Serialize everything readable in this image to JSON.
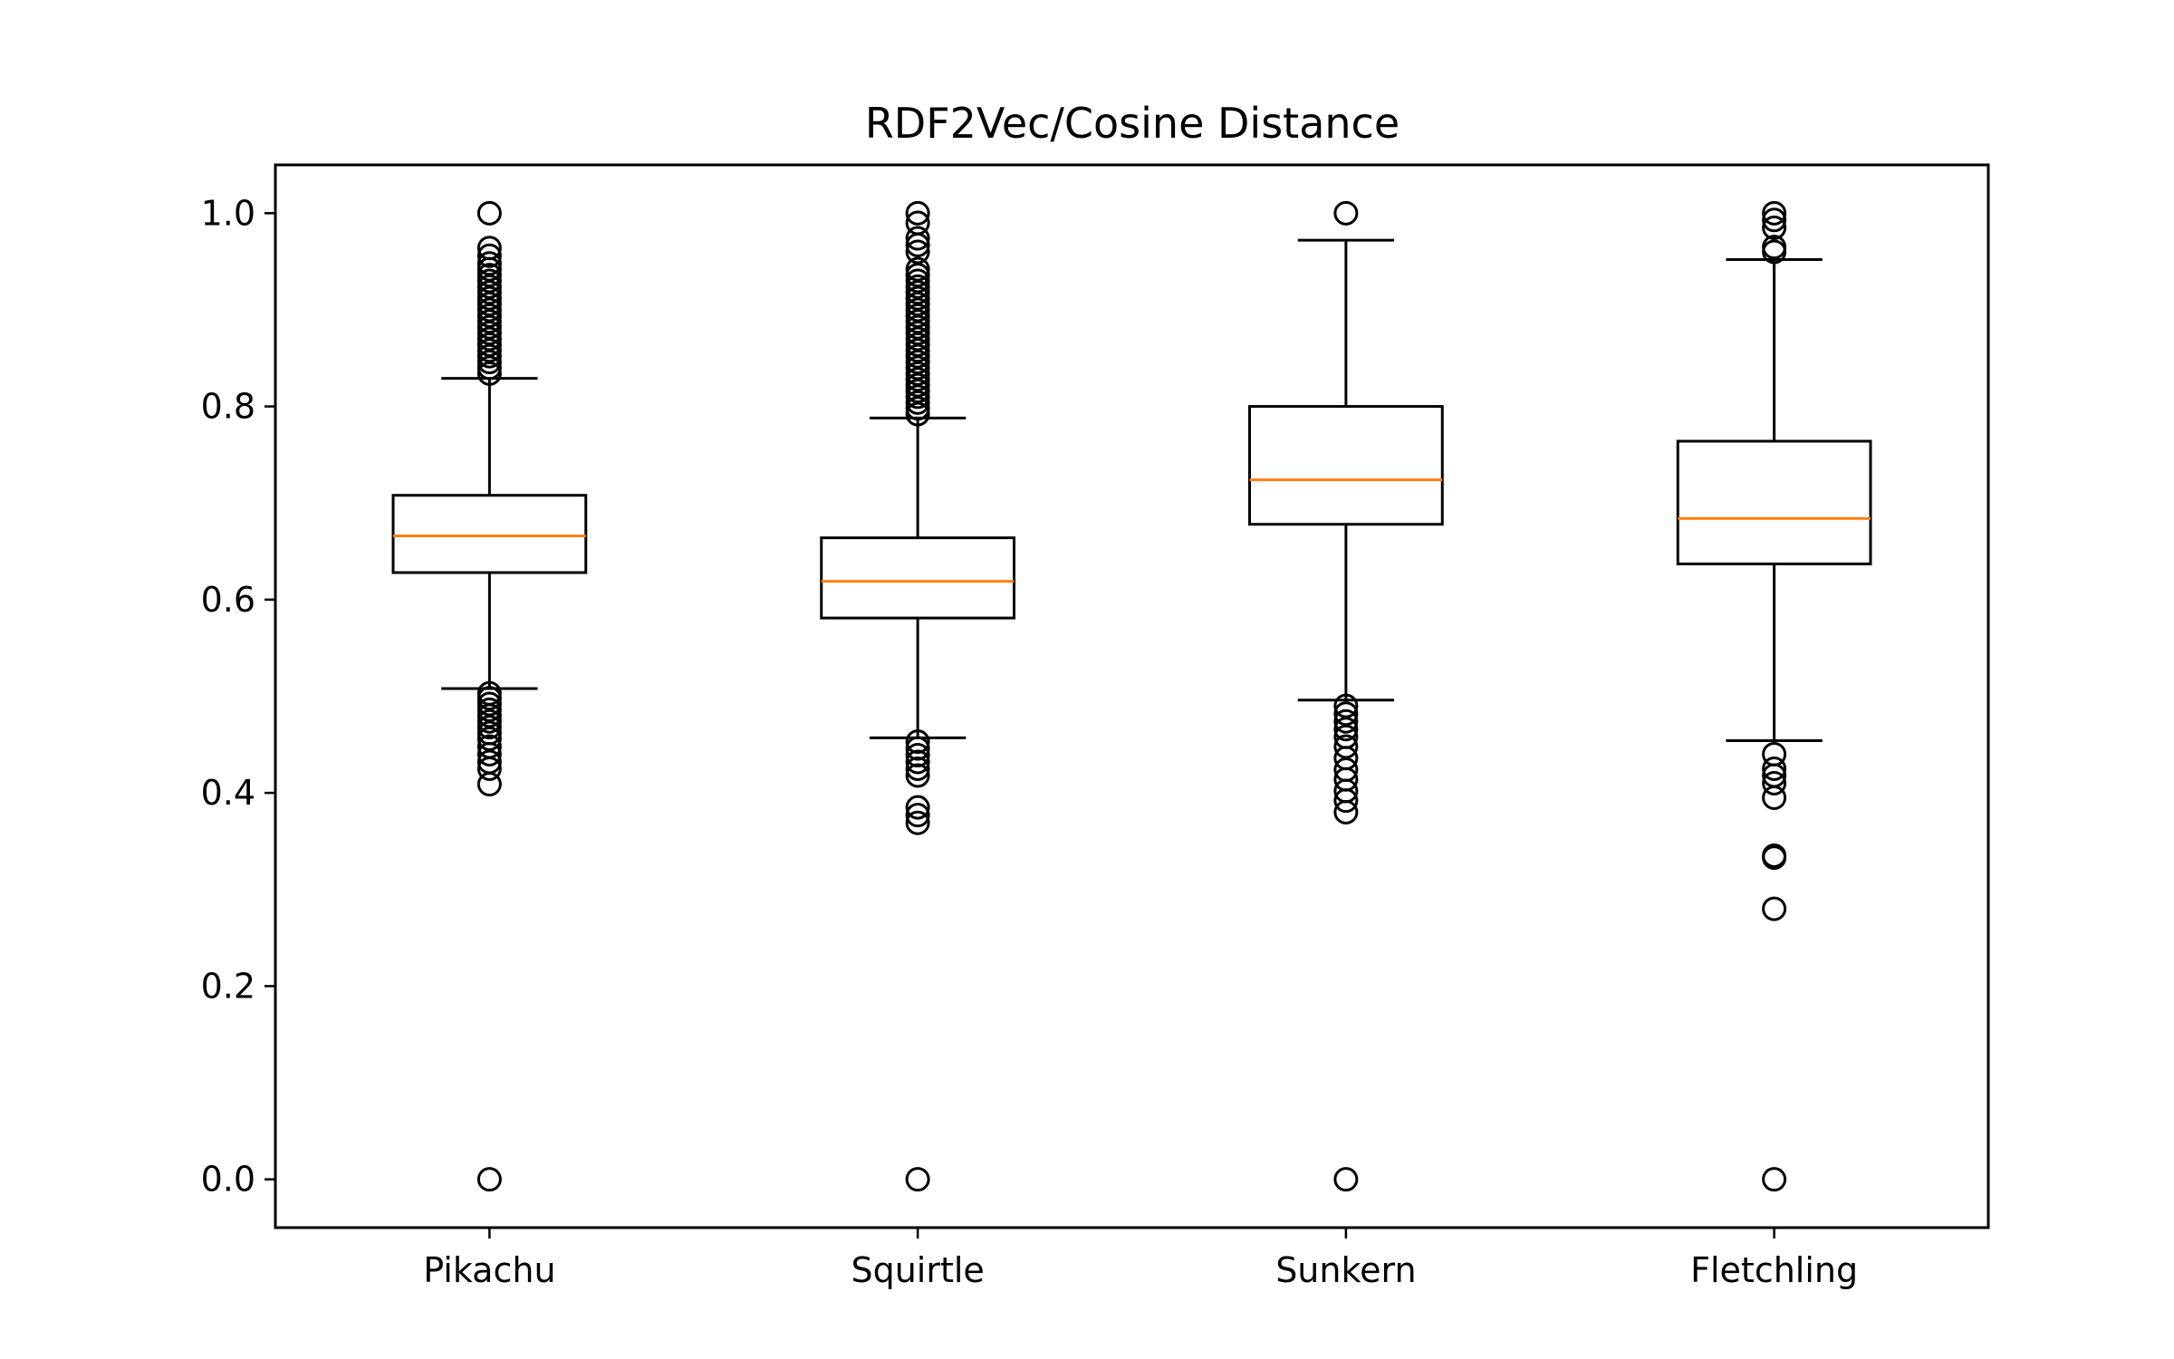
{
  "chart_data": {
    "type": "boxplot",
    "title": "RDF2Vec/Cosine Distance",
    "xlabel": "",
    "ylabel": "",
    "ylim": [
      -0.05,
      1.05
    ],
    "yticks": [
      "0.0",
      "0.2",
      "0.4",
      "0.6",
      "0.8",
      "1.0"
    ],
    "categories": [
      "Pikachu",
      "Squirtle",
      "Sunkern",
      "Fletchling"
    ],
    "series": [
      {
        "category": "Pikachu",
        "whisker_low": 0.508,
        "q1": 0.628,
        "median": 0.666,
        "q3": 0.708,
        "whisker_high": 0.829,
        "outliers": [
          0.0,
          0.409,
          0.425,
          0.432,
          0.44,
          0.448,
          0.456,
          0.462,
          0.468,
          0.474,
          0.48,
          0.486,
          0.492,
          0.498,
          0.503,
          0.834,
          0.84,
          0.846,
          0.852,
          0.858,
          0.864,
          0.87,
          0.876,
          0.882,
          0.888,
          0.894,
          0.9,
          0.906,
          0.912,
          0.918,
          0.924,
          0.93,
          0.936,
          0.942,
          0.948,
          0.956,
          0.964,
          1.0
        ]
      },
      {
        "category": "Squirtle",
        "whisker_low": 0.457,
        "q1": 0.581,
        "median": 0.619,
        "q3": 0.664,
        "whisker_high": 0.788,
        "outliers": [
          0.0,
          0.369,
          0.377,
          0.385,
          0.418,
          0.425,
          0.432,
          0.439,
          0.446,
          0.453,
          0.792,
          0.798,
          0.804,
          0.81,
          0.816,
          0.822,
          0.828,
          0.834,
          0.84,
          0.846,
          0.852,
          0.858,
          0.864,
          0.87,
          0.876,
          0.882,
          0.888,
          0.894,
          0.9,
          0.906,
          0.912,
          0.918,
          0.924,
          0.93,
          0.936,
          0.942,
          0.96,
          0.967,
          0.974,
          0.99,
          1.0
        ]
      },
      {
        "category": "Sunkern",
        "whisker_low": 0.496,
        "q1": 0.678,
        "median": 0.724,
        "q3": 0.8,
        "whisker_high": 0.972,
        "outliers": [
          0.0,
          0.38,
          0.392,
          0.402,
          0.414,
          0.424,
          0.436,
          0.448,
          0.458,
          0.466,
          0.474,
          0.482,
          0.49,
          1.0
        ]
      },
      {
        "category": "Fletchling",
        "whisker_low": 0.454,
        "q1": 0.637,
        "median": 0.684,
        "q3": 0.764,
        "whisker_high": 0.952,
        "outliers": [
          0.0,
          0.28,
          0.333,
          0.335,
          0.395,
          0.41,
          0.418,
          0.425,
          0.44,
          0.96,
          0.965,
          0.985,
          0.993,
          1.0
        ]
      }
    ],
    "colors": {
      "box": "#000000",
      "median": "#ff7f0e",
      "background": "#ffffff"
    },
    "grid": false,
    "legend": "none"
  }
}
